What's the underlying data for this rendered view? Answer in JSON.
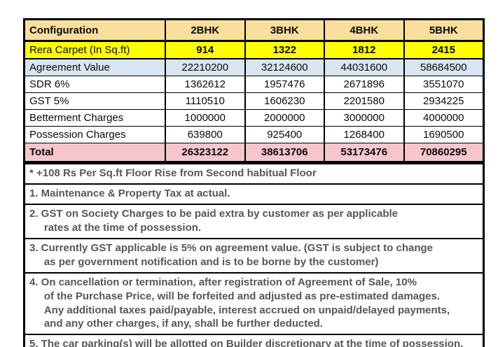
{
  "table": {
    "columns": [
      "Configuration",
      "2BHK",
      "3BHK",
      "4BHK",
      "5BHK"
    ],
    "rows": [
      {
        "label": "Rera Carpet (In Sq.ft)",
        "values": [
          "914",
          "1322",
          "1812",
          "2415"
        ]
      },
      {
        "label": "Agreement Value",
        "values": [
          "22210200",
          "32124600",
          "44031600",
          "58684500"
        ]
      },
      {
        "label": "SDR 6%",
        "values": [
          "1362612",
          "1957476",
          "2671896",
          "3551070"
        ]
      },
      {
        "label": "GST 5%",
        "values": [
          "1110510",
          "1606230",
          "2201580",
          "2934225"
        ]
      },
      {
        "label": "Betterment Charges",
        "values": [
          "1000000",
          "2000000",
          "3000000",
          "4000000"
        ]
      },
      {
        "label": "Possession Charges",
        "values": [
          "639800",
          "925400",
          "1268400",
          "1690500"
        ]
      },
      {
        "label": "Total",
        "values": [
          "26323122",
          "38613706",
          "53173476",
          "70860295"
        ]
      }
    ]
  },
  "notes": [
    "* +108 Rs Per Sq.ft Floor Rise from Second habitual Floor",
    "1. Maintenance & Property Tax at actual.",
    "2. GST on Society Charges to be paid extra by customer as per applicable\n     rates at the time of possession.",
    "3. Currently GST applicable is 5% on agreement value. (GST is subject to change\n     as per government notification and is to be borne by the customer)",
    "4. On cancellation or termination, after registration of Agreement of Sale, 10%\n     of the Purchase Price, will be forfeited and adjusted as pre-estimated damages.\n     Any additional taxes paid/payable, interest accrued on unpaid/delayed payments,\n     and any other charges, if any, shall be further deducted.",
    "5. The car parking(s) will be allotted on Builder discretionary at the time of possession."
  ],
  "colors": {
    "header_bg": "#FADE9C",
    "rera_bg": "#FFFF00",
    "agreement_bg": "#D9E5F0",
    "total_bg": "#F7C6CC",
    "notes_text": "#575757",
    "border": "#000000"
  }
}
